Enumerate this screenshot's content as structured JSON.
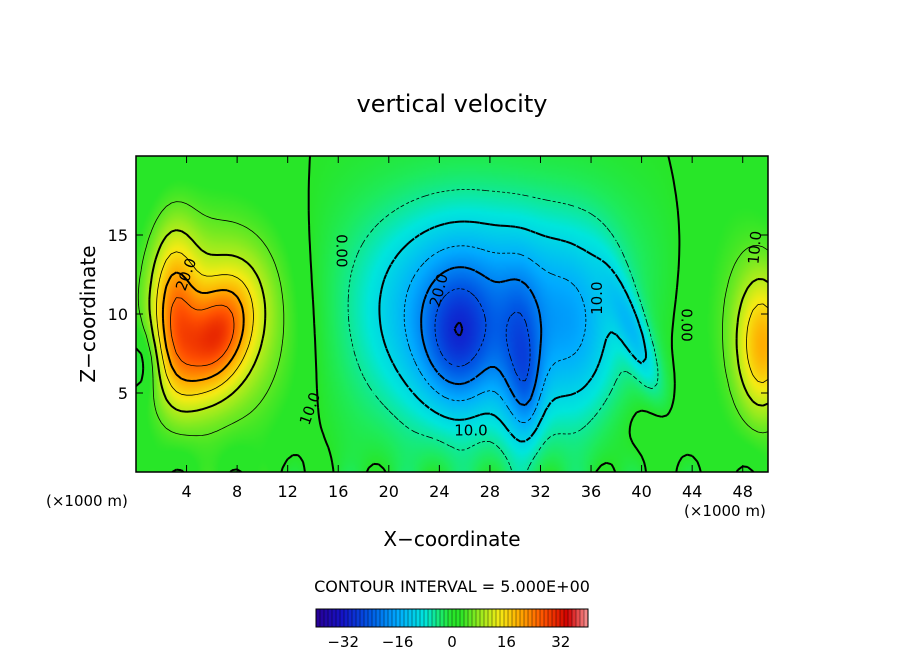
{
  "chart_data": {
    "type": "heatmap",
    "title": "vertical velocity",
    "xlabel": "X−coordinate",
    "ylabel": "Z−coordinate",
    "x_unit": "(×1000 m)",
    "x_unit_right": "(×1000 m)",
    "x_ticks": [
      "4",
      "8",
      "12",
      "16",
      "20",
      "24",
      "28",
      "32",
      "36",
      "40",
      "44",
      "48"
    ],
    "y_ticks": [
      "5",
      "10",
      "15"
    ],
    "xlim": [
      0,
      50
    ],
    "ylim": [
      0,
      20
    ],
    "contour_interval_label": "CONTOUR INTERVAL = 5.000E+00",
    "contour_interval": 5.0,
    "colorbar": {
      "ticks": [
        "−32",
        "−16",
        "0",
        "16",
        "32"
      ],
      "range": [
        -40,
        40
      ]
    },
    "contour_labels": [
      {
        "text": "20.0",
        "x": 4.0,
        "y": 12.5,
        "angle": -70
      },
      {
        "text": "10.0",
        "x": 13.8,
        "y": 4.0,
        "angle": -70
      },
      {
        "text": "0.00",
        "x": 16.2,
        "y": 14.0,
        "angle": 90
      },
      {
        "text": "20.0",
        "x": 24.0,
        "y": 11.5,
        "angle": -75
      },
      {
        "text": "10.0",
        "x": 26.5,
        "y": 2.6,
        "angle": 0
      },
      {
        "text": "10.0",
        "x": 36.5,
        "y": 11.0,
        "angle": -90
      },
      {
        "text": "0.00",
        "x": 43.5,
        "y": 9.3,
        "angle": 90
      },
      {
        "text": "10.0",
        "x": 49.0,
        "y": 14.2,
        "angle": -85
      }
    ],
    "features": [
      {
        "kind": "updraft",
        "x": 3.0,
        "y": 10.0,
        "peak": 28
      },
      {
        "kind": "updraft",
        "x": 6.0,
        "y": 8.7,
        "peak": 30
      },
      {
        "kind": "updraft",
        "x": 49.5,
        "y": 8.0,
        "peak": 18
      },
      {
        "kind": "downdraft",
        "x": 25.5,
        "y": 8.5,
        "peak": -30
      },
      {
        "kind": "downdraft",
        "x": 30.5,
        "y": 7.5,
        "peak": -28
      },
      {
        "kind": "downdraft",
        "x": 35.0,
        "y": 9.0,
        "peak": -14
      }
    ],
    "colors": {
      "strong_negative": "#2800b4",
      "negative": "#00c8ff",
      "zero": "#28e628",
      "positive": "#ffe000",
      "strong_positive": "#c80000"
    }
  }
}
